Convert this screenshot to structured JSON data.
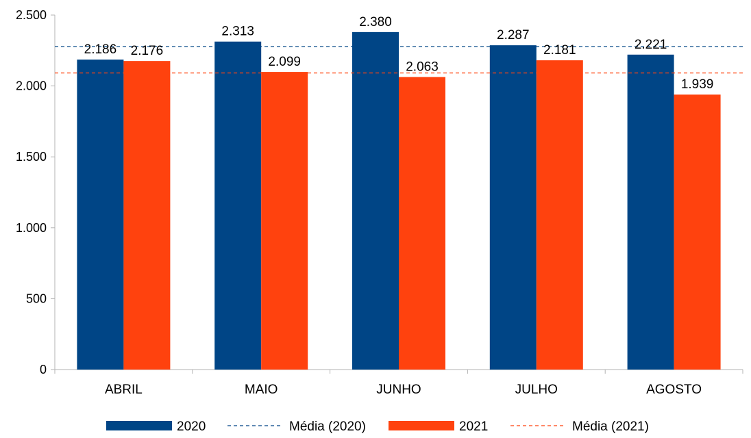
{
  "chart_data": {
    "type": "bar",
    "categories": [
      "ABRIL",
      "MAIO",
      "JUNHO",
      "JULHO",
      "AGOSTO"
    ],
    "series": [
      {
        "name": "2020",
        "values": [
          2186,
          2313,
          2380,
          2287,
          2221
        ],
        "labels": [
          "2.186",
          "2.313",
          "2.380",
          "2.287",
          "2.221"
        ],
        "color": "#004586"
      },
      {
        "name": "2021",
        "values": [
          2176,
          2099,
          2063,
          2181,
          1939
        ],
        "labels": [
          "2.176",
          "2.099",
          "2.063",
          "2.181",
          "1.939"
        ],
        "color": "#ff420e"
      }
    ],
    "reference_lines": [
      {
        "name": "Média (2020)",
        "value": 2277.4,
        "color": "#004586",
        "style": "dashed"
      },
      {
        "name": "Média (2021)",
        "value": 2091.6,
        "color": "#ff420e",
        "style": "dashed"
      }
    ],
    "ylim": [
      0,
      2500
    ],
    "yticks": [
      0,
      500,
      1000,
      1500,
      2000,
      2500
    ],
    "ytick_labels": [
      "0",
      "500",
      "1.000",
      "1.500",
      "2.000",
      "2.500"
    ],
    "legend": {
      "placement": "bottom",
      "entries": [
        {
          "label": "2020",
          "kind": "bar",
          "color": "#004586"
        },
        {
          "label": "Média (2020)",
          "kind": "dashed-line",
          "color": "#004586"
        },
        {
          "label": "2021",
          "kind": "bar",
          "color": "#ff420e"
        },
        {
          "label": "Média (2021)",
          "kind": "dashed-line",
          "color": "#ff420e"
        }
      ]
    },
    "grid": false
  }
}
